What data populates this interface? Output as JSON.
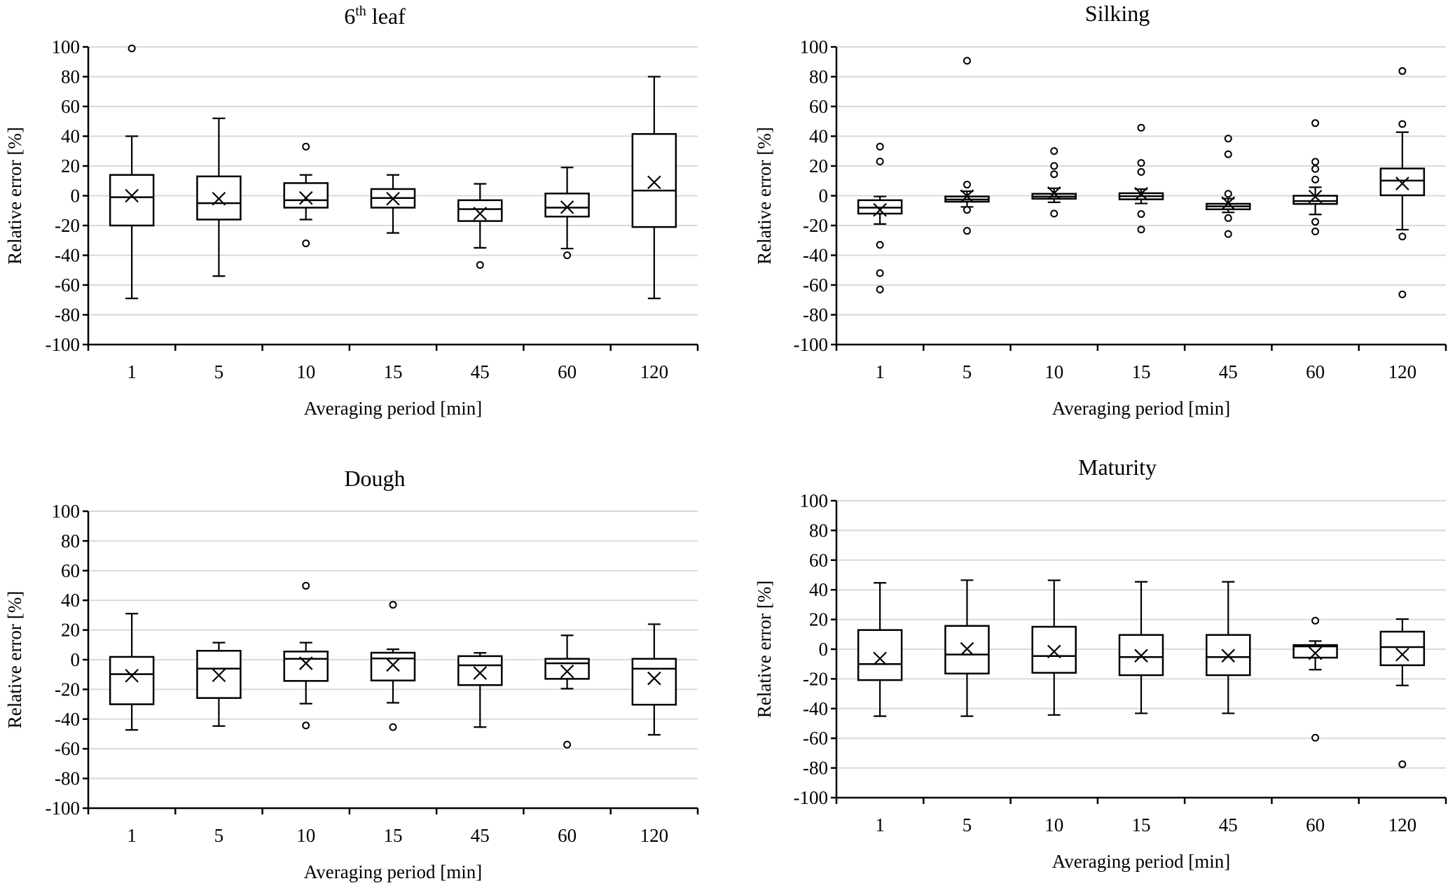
{
  "figure": {
    "ylabel": "Relative error [%]",
    "xlabel": "Averaging period [min]"
  },
  "chart_data": [
    {
      "type": "box",
      "title": "6th leaf",
      "title_main": "6",
      "title_sup": "th",
      "title_rest": " leaf",
      "xlabel": "Averaging period [min]",
      "ylabel": "Relative error [%]",
      "ylim": [
        -100,
        100
      ],
      "yticks": [
        100,
        80,
        60,
        40,
        20,
        0,
        -20,
        -40,
        -60,
        -80,
        -100
      ],
      "grid": true,
      "categories": [
        "1",
        "5",
        "10",
        "15",
        "45",
        "60",
        "120"
      ],
      "boxes": [
        {
          "whislo": -69,
          "q1": -20,
          "median": -1,
          "q3": 14,
          "whishi": 40,
          "mean": 0,
          "outliers": [
            99
          ]
        },
        {
          "whislo": -54,
          "q1": -16,
          "median": -5,
          "q3": 13,
          "whishi": 52,
          "mean": -2,
          "outliers": []
        },
        {
          "whislo": -16,
          "q1": -8,
          "median": -3,
          "q3": 8.5,
          "whishi": 14,
          "mean": -1.5,
          "outliers": [
            33,
            -32
          ]
        },
        {
          "whislo": -25,
          "q1": -8,
          "median": -1.5,
          "q3": 4.5,
          "whishi": 14,
          "mean": -2,
          "outliers": []
        },
        {
          "whislo": -35,
          "q1": -17,
          "median": -9,
          "q3": -3,
          "whishi": 8,
          "mean": -12,
          "outliers": [
            -46.5
          ]
        },
        {
          "whislo": -35.5,
          "q1": -14,
          "median": -8,
          "q3": 1.5,
          "whishi": 19,
          "mean": -7.7,
          "outliers": [
            -40
          ]
        },
        {
          "whislo": -69,
          "q1": -21,
          "median": 3.5,
          "q3": 41.5,
          "whishi": 80,
          "mean": 9,
          "outliers": []
        }
      ]
    },
    {
      "type": "box",
      "title": "Silking",
      "xlabel": "Averaging period [min]",
      "ylabel": "Relative error [%]",
      "ylim": [
        -100,
        100
      ],
      "yticks": [
        100,
        80,
        60,
        40,
        20,
        0,
        -20,
        -40,
        -60,
        -80,
        -100
      ],
      "grid": true,
      "categories": [
        "1",
        "5",
        "10",
        "15",
        "45",
        "60",
        "120"
      ],
      "boxes": [
        {
          "whislo": -19,
          "q1": -12,
          "median": -8,
          "q3": -3,
          "whishi": -0.5,
          "mean": -9.5,
          "outliers": [
            33,
            23,
            -33,
            -52,
            -63
          ]
        },
        {
          "whislo": -7.5,
          "q1": -4,
          "median": -2.5,
          "q3": -0.5,
          "whishi": 3,
          "mean": -0.3,
          "outliers": [
            90.7,
            7.5,
            -9.5,
            -23.6
          ]
        },
        {
          "whislo": -4.4,
          "q1": -2,
          "median": -0.5,
          "q3": 1.3,
          "whishi": 5,
          "mean": 1.7,
          "outliers": [
            30,
            20,
            14.5,
            -12
          ]
        },
        {
          "whislo": -5.2,
          "q1": -2.4,
          "median": -0.3,
          "q3": 1.7,
          "whishi": 4.4,
          "mean": 1.3,
          "outliers": [
            45.7,
            22,
            16,
            -12.3,
            -22.7
          ]
        },
        {
          "whislo": -11.2,
          "q1": -9.1,
          "median": -7.1,
          "q3": -5.4,
          "whishi": -1.9,
          "mean": -5,
          "outliers": [
            38.4,
            27.9,
            1.3,
            -15,
            -25.7
          ]
        },
        {
          "whislo": -12.6,
          "q1": -5.5,
          "median": -3.6,
          "q3": 0,
          "whishi": 5.7,
          "mean": -0.6,
          "outliers": [
            48.8,
            22.8,
            18,
            10.9,
            -17.5,
            -24
          ]
        },
        {
          "whislo": -22.8,
          "q1": 0.3,
          "median": 10.2,
          "q3": 18.3,
          "whishi": 42.7,
          "mean": 8.2,
          "outliers": [
            83.8,
            48.2,
            -27.4,
            -66.3
          ]
        }
      ]
    },
    {
      "type": "box",
      "title": "Dough",
      "xlabel": "Averaging period [min]",
      "ylabel": "Relative error [%]",
      "ylim": [
        -100,
        100
      ],
      "yticks": [
        100,
        80,
        60,
        40,
        20,
        0,
        -20,
        -40,
        -60,
        -80,
        -100
      ],
      "grid": true,
      "categories": [
        "1",
        "5",
        "10",
        "15",
        "45",
        "60",
        "120"
      ],
      "boxes": [
        {
          "whislo": -47.3,
          "q1": -30,
          "median": -9.7,
          "q3": 1.9,
          "whishi": 31,
          "mean": -10.8,
          "outliers": []
        },
        {
          "whislo": -44.7,
          "q1": -25.8,
          "median": -6,
          "q3": 6,
          "whishi": 11.5,
          "mean": -10.5,
          "outliers": []
        },
        {
          "whislo": -29.6,
          "q1": -14.3,
          "median": 0.6,
          "q3": 5.5,
          "whishi": 11.5,
          "mean": -2.4,
          "outliers": [
            49.8,
            -44.3
          ]
        },
        {
          "whislo": -29,
          "q1": -14,
          "median": 0.8,
          "q3": 4.7,
          "whishi": 7,
          "mean": -3.5,
          "outliers": [
            37,
            -45.4
          ]
        },
        {
          "whislo": -45.4,
          "q1": -17.1,
          "median": -3.8,
          "q3": 2.4,
          "whishi": 4.6,
          "mean": -9,
          "outliers": []
        },
        {
          "whislo": -19.5,
          "q1": -12.9,
          "median": -2.4,
          "q3": 0.6,
          "whishi": 16.4,
          "mean": -7.9,
          "outliers": [
            -57.2
          ]
        },
        {
          "whislo": -50.6,
          "q1": -30.3,
          "median": -6.1,
          "q3": 0.6,
          "whishi": 23.9,
          "mean": -12.6,
          "outliers": []
        }
      ]
    },
    {
      "type": "box",
      "title": "Maturity",
      "xlabel": "Averaging period [min]",
      "ylabel": "Relative error [%]",
      "ylim": [
        -100,
        100
      ],
      "yticks": [
        100,
        80,
        60,
        40,
        20,
        0,
        -20,
        -40,
        -60,
        -80,
        -100
      ],
      "grid": true,
      "categories": [
        "1",
        "5",
        "10",
        "15",
        "45",
        "60",
        "120"
      ],
      "boxes": [
        {
          "whislo": -45.1,
          "q1": -20.8,
          "median": -10,
          "q3": 12.9,
          "whishi": 44.7,
          "mean": -6.3,
          "outliers": []
        },
        {
          "whislo": -45.1,
          "q1": -16.4,
          "median": -3.6,
          "q3": 15.7,
          "whishi": 46.5,
          "mean": 0.2,
          "outliers": []
        },
        {
          "whislo": -44.3,
          "q1": -15.9,
          "median": -4.6,
          "q3": 15.1,
          "whishi": 46.4,
          "mean": -1.6,
          "outliers": []
        },
        {
          "whislo": -43.2,
          "q1": -17.5,
          "median": -5.3,
          "q3": 9.6,
          "whishi": 45.4,
          "mean": -4.4,
          "outliers": []
        },
        {
          "whislo": -43.2,
          "q1": -17.5,
          "median": -5.3,
          "q3": 9.6,
          "whishi": 45.4,
          "mean": -4.4,
          "outliers": []
        },
        {
          "whislo": -13.8,
          "q1": -5.7,
          "median": 1.9,
          "q3": 2.8,
          "whishi": 5.5,
          "mean": -2.7,
          "outliers": [
            19.2,
            -59.6
          ]
        },
        {
          "whislo": -24.4,
          "q1": -10.8,
          "median": 1.4,
          "q3": 11.8,
          "whishi": 20.3,
          "mean": -3.6,
          "outliers": [
            -77.5
          ]
        }
      ]
    }
  ]
}
